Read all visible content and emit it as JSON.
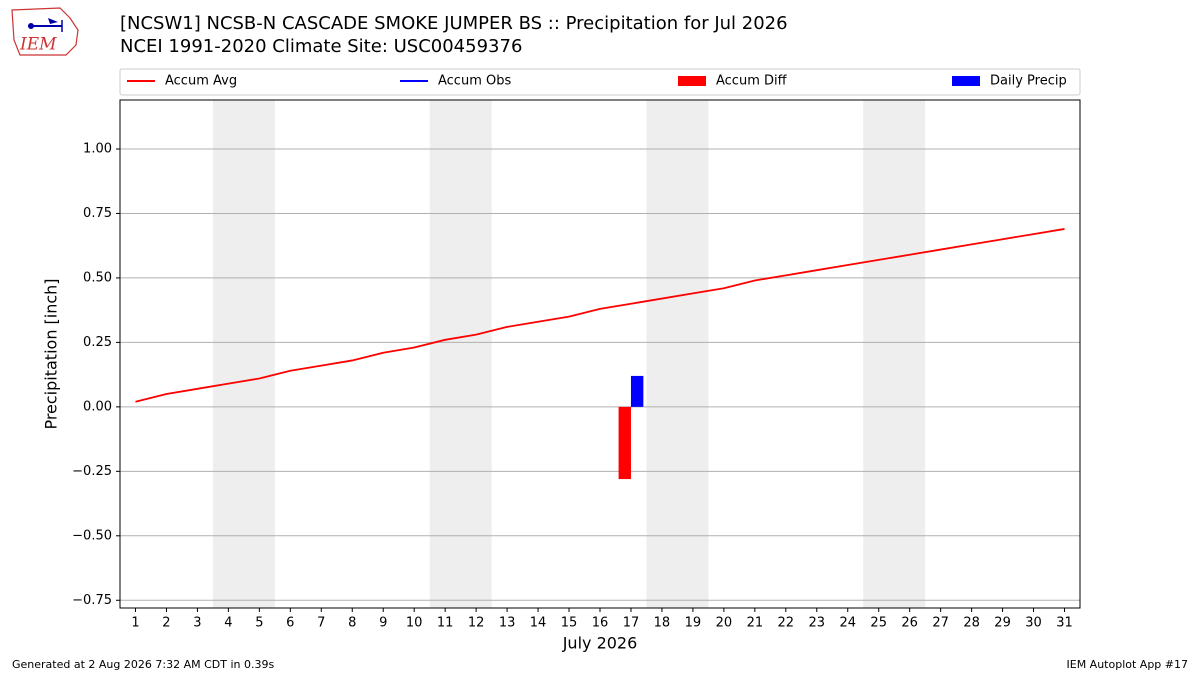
{
  "chart_data": {
    "type": "line",
    "title": "[NCSW1] NCSB-N CASCADE SMOKE JUMPER BS :: Precipitation for Jul 2026",
    "subtitle": "NCEI 1991-2020 Climate Site: USC00459376",
    "logo_text": "IEM",
    "xlabel": "July 2026",
    "ylabel": "Precipitation [inch]",
    "footer_left": "Generated at 2 Aug 2026 7:32 AM CDT in 0.39s",
    "footer_right": "IEM Autoplot App #17",
    "x": [
      1,
      2,
      3,
      4,
      5,
      6,
      7,
      8,
      9,
      10,
      11,
      12,
      13,
      14,
      15,
      16,
      17,
      18,
      19,
      20,
      21,
      22,
      23,
      24,
      25,
      26,
      27,
      28,
      29,
      30,
      31
    ],
    "xlim": [
      0.5,
      31.5
    ],
    "xticks": [
      1,
      2,
      3,
      4,
      5,
      6,
      7,
      8,
      9,
      10,
      11,
      12,
      13,
      14,
      15,
      16,
      17,
      18,
      19,
      20,
      21,
      22,
      23,
      24,
      25,
      26,
      27,
      28,
      29,
      30,
      31
    ],
    "ylim": [
      -0.78,
      1.19
    ],
    "yticks": [
      {
        "value": -0.75,
        "label": "−0.75"
      },
      {
        "value": -0.5,
        "label": "−0.50"
      },
      {
        "value": -0.25,
        "label": "−0.25"
      },
      {
        "value": 0,
        "label": "0.00"
      },
      {
        "value": 0.25,
        "label": "0.25"
      },
      {
        "value": 0.5,
        "label": "0.50"
      },
      {
        "value": 0.75,
        "label": "0.75"
      },
      {
        "value": 1,
        "label": "1.00"
      }
    ],
    "grid": true,
    "shaded_spans": [
      [
        3.5,
        5.5
      ],
      [
        10.5,
        12.5
      ],
      [
        17.5,
        19.5
      ],
      [
        24.5,
        26.5
      ]
    ],
    "series": [
      {
        "name": "Accum Avg",
        "kind": "line",
        "color": "#ff0000",
        "values": [
          0.02,
          0.05,
          0.07,
          0.09,
          0.11,
          0.14,
          0.16,
          0.18,
          0.21,
          0.23,
          0.26,
          0.28,
          0.31,
          0.33,
          0.35,
          0.38,
          0.4,
          0.42,
          0.44,
          0.46,
          0.49,
          0.51,
          0.53,
          0.55,
          0.57,
          0.59,
          0.61,
          0.63,
          0.65,
          0.67,
          0.69
        ]
      },
      {
        "name": "Accum Obs",
        "kind": "line",
        "color": "#0000ff",
        "values": [
          null,
          null,
          null,
          null,
          null,
          null,
          null,
          null,
          null,
          null,
          null,
          null,
          null,
          null,
          null,
          null,
          null,
          null,
          null,
          null,
          null,
          null,
          null,
          null,
          null,
          null,
          null,
          null,
          null,
          null,
          null
        ]
      },
      {
        "name": "Accum Diff",
        "kind": "bar",
        "color": "#ff0000",
        "values": [
          null,
          null,
          null,
          null,
          null,
          null,
          null,
          null,
          null,
          null,
          null,
          null,
          null,
          null,
          null,
          null,
          -0.28,
          null,
          null,
          null,
          null,
          null,
          null,
          null,
          null,
          null,
          null,
          null,
          null,
          null,
          null
        ]
      },
      {
        "name": "Daily Precip",
        "kind": "bar",
        "color": "#0000ff",
        "values": [
          null,
          null,
          null,
          null,
          null,
          null,
          null,
          null,
          null,
          null,
          null,
          null,
          null,
          null,
          null,
          null,
          0.12,
          null,
          null,
          null,
          null,
          null,
          null,
          null,
          null,
          null,
          null,
          null,
          null,
          null,
          null
        ]
      }
    ]
  }
}
